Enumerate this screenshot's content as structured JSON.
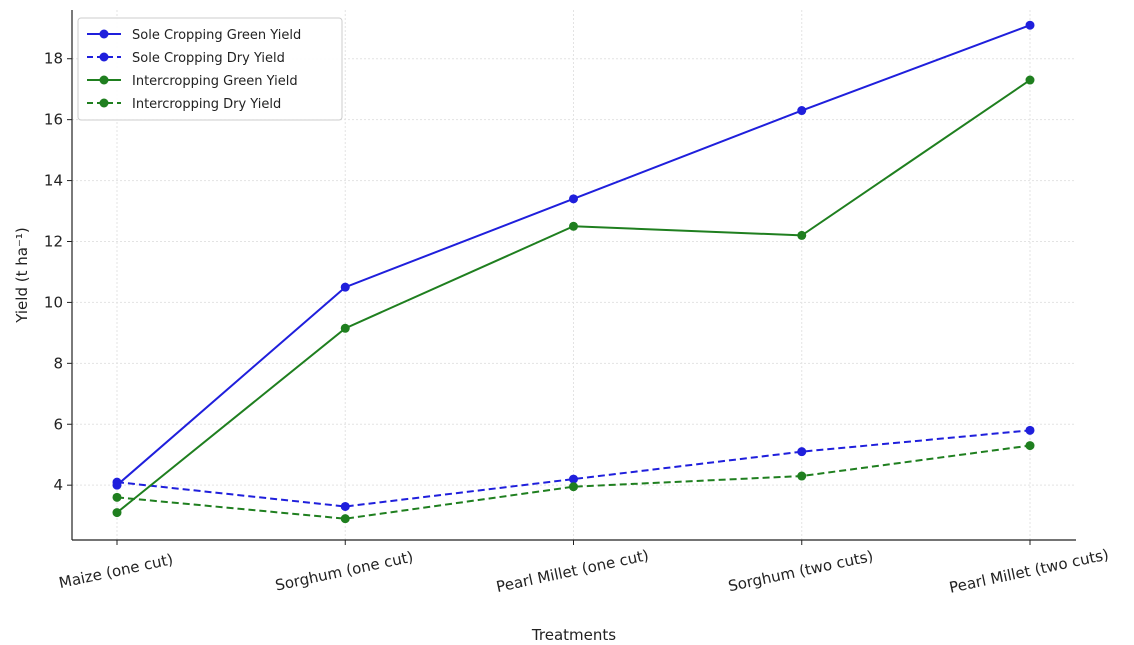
{
  "chart_data": {
    "type": "line",
    "title": "",
    "xlabel": "Treatments",
    "ylabel": "Yield (t ha⁻¹)",
    "categories": [
      "Maize (one cut)",
      "Sorghum (one cut)",
      "Pearl Millet (one cut)",
      "Sorghum (two cuts)",
      "Pearl Millet (two cuts)"
    ],
    "ylim": [
      2.2,
      19.6
    ],
    "yticks": [
      4,
      6,
      8,
      10,
      12,
      14,
      16,
      18
    ],
    "grid": true,
    "legend_position": "top-left",
    "series": [
      {
        "name": "Sole Cropping Green Yield",
        "values": [
          4.0,
          10.5,
          13.4,
          16.3,
          19.1
        ],
        "color": "#1f1fdc",
        "dash": "solid"
      },
      {
        "name": "Sole Cropping Dry Yield",
        "values": [
          4.1,
          3.3,
          4.2,
          5.1,
          5.8
        ],
        "color": "#1f1fdc",
        "dash": "dashed"
      },
      {
        "name": "Intercropping Green Yield",
        "values": [
          3.1,
          9.15,
          12.5,
          12.2,
          17.3
        ],
        "color": "#1f7f1f",
        "dash": "solid"
      },
      {
        "name": "Intercropping Dry Yield",
        "values": [
          3.6,
          2.9,
          3.95,
          4.3,
          5.3
        ],
        "color": "#1f7f1f",
        "dash": "dashed"
      }
    ]
  }
}
